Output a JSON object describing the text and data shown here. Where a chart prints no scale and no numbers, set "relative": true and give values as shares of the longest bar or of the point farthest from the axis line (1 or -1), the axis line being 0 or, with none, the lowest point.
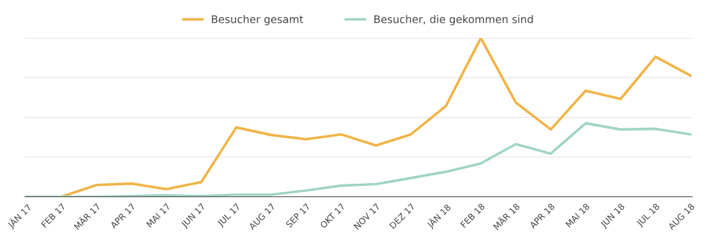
{
  "chart_data": {
    "type": "line",
    "relative": true,
    "categories": [
      "JÄN 17",
      "FEB 17",
      "MÄR 17",
      "APR 17",
      "MAI 17",
      "JUN 17",
      "JUL 17",
      "AUG 17",
      "SEP 17",
      "OKT 17",
      "NOV 17",
      "DEZ 17",
      "JÄN 18",
      "FEB 18",
      "MÄR 18",
      "APR 18",
      "MAI 18",
      "JUN 18",
      "JUL 18",
      "AUG 18"
    ],
    "series": [
      {
        "name": "Besucher gesamt",
        "color": "#f0b445",
        "values": [
          0,
          0,
          0.074,
          0.083,
          0.048,
          0.092,
          0.437,
          0.389,
          0.362,
          0.393,
          0.323,
          0.393,
          0.572,
          1.0,
          0.594,
          0.424,
          0.668,
          0.616,
          0.882,
          0.764
        ]
      },
      {
        "name": "Besucher, die gekommen sind",
        "color": "#9fd4c4",
        "values": [
          0,
          0,
          0,
          0.004,
          0.009,
          0.004,
          0.013,
          0.013,
          0.039,
          0.07,
          0.079,
          0.118,
          0.157,
          0.21,
          0.332,
          0.271,
          0.463,
          0.424,
          0.428,
          0.393
        ]
      }
    ],
    "grid": "y",
    "legend": "top",
    "marker": "none",
    "line_style": "solid"
  }
}
